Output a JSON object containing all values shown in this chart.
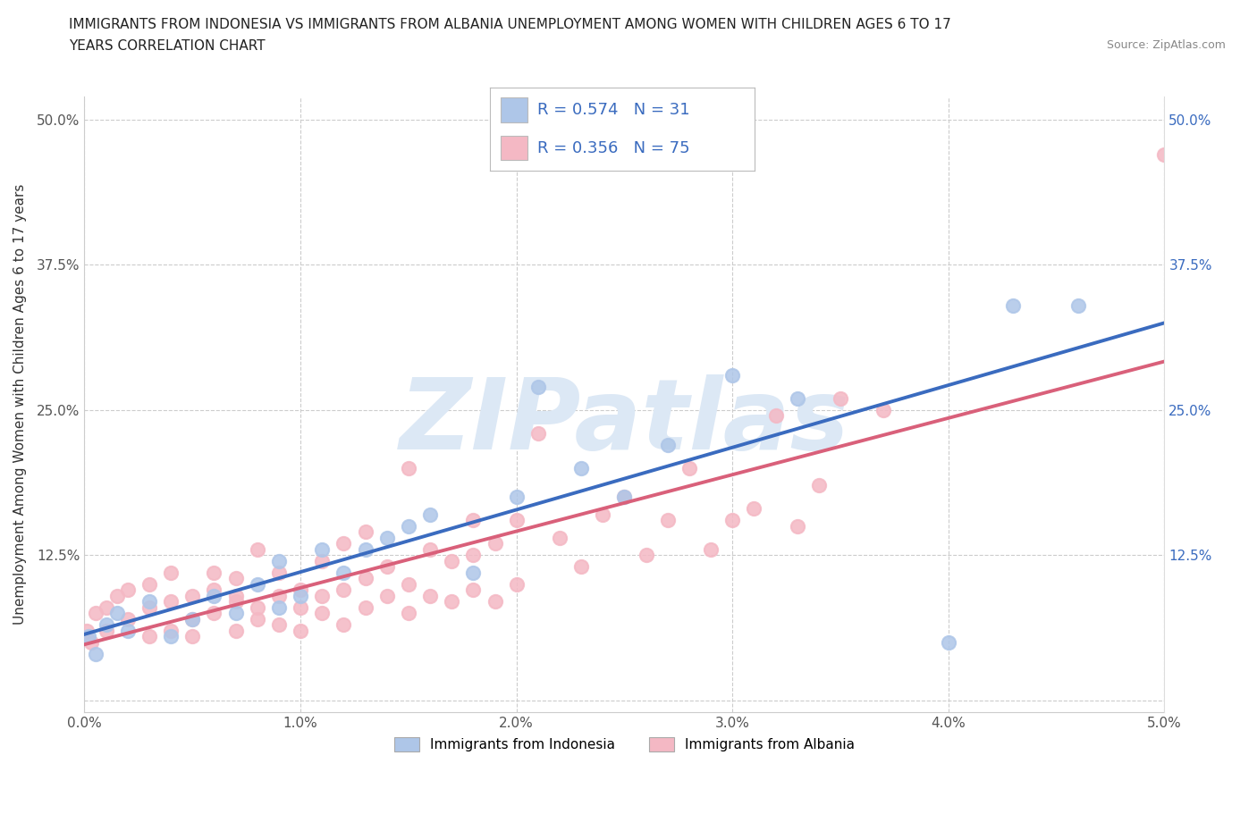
{
  "title_line1": "IMMIGRANTS FROM INDONESIA VS IMMIGRANTS FROM ALBANIA UNEMPLOYMENT AMONG WOMEN WITH CHILDREN AGES 6 TO 17",
  "title_line2": "YEARS CORRELATION CHART",
  "source_text": "Source: ZipAtlas.com",
  "ylabel": "Unemployment Among Women with Children Ages 6 to 17 years",
  "xlim": [
    0.0,
    0.05
  ],
  "ylim": [
    -0.01,
    0.52
  ],
  "xticks": [
    0.0,
    0.01,
    0.02,
    0.03,
    0.04,
    0.05
  ],
  "xticklabels": [
    "0.0%",
    "1.0%",
    "2.0%",
    "3.0%",
    "4.0%",
    "5.0%"
  ],
  "yticks": [
    0.0,
    0.125,
    0.25,
    0.375,
    0.5
  ],
  "yticklabels": [
    "",
    "12.5%",
    "25.0%",
    "37.5%",
    "50.0%"
  ],
  "indonesia_scatter_color": "#aec6e8",
  "albania_scatter_color": "#f4b8c4",
  "indonesia_line_color": "#3a6bbf",
  "albania_line_color": "#d9607a",
  "legend_text_color": "#3a6bbf",
  "right_axis_color": "#3a6bbf",
  "watermark_color": "#dce8f5",
  "watermark": "ZIPatlas",
  "R_indonesia": "0.574",
  "N_indonesia": "31",
  "R_albania": "0.356",
  "N_albania": "75",
  "legend_label_indonesia": "Immigrants from Indonesia",
  "legend_label_albania": "Immigrants from Albania",
  "indonesia_x": [
    0.0002,
    0.0005,
    0.001,
    0.0015,
    0.002,
    0.003,
    0.004,
    0.005,
    0.006,
    0.007,
    0.008,
    0.009,
    0.009,
    0.01,
    0.011,
    0.012,
    0.013,
    0.014,
    0.015,
    0.016,
    0.018,
    0.02,
    0.021,
    0.023,
    0.025,
    0.027,
    0.03,
    0.033,
    0.04,
    0.043,
    0.046
  ],
  "indonesia_y": [
    0.055,
    0.04,
    0.065,
    0.075,
    0.06,
    0.085,
    0.055,
    0.07,
    0.09,
    0.075,
    0.1,
    0.08,
    0.12,
    0.09,
    0.13,
    0.11,
    0.13,
    0.14,
    0.15,
    0.16,
    0.11,
    0.175,
    0.27,
    0.2,
    0.175,
    0.22,
    0.28,
    0.26,
    0.05,
    0.34,
    0.34
  ],
  "albania_x": [
    0.0001,
    0.0003,
    0.0005,
    0.001,
    0.001,
    0.0015,
    0.002,
    0.002,
    0.003,
    0.003,
    0.003,
    0.004,
    0.004,
    0.004,
    0.005,
    0.005,
    0.005,
    0.006,
    0.006,
    0.006,
    0.007,
    0.007,
    0.007,
    0.007,
    0.008,
    0.008,
    0.008,
    0.009,
    0.009,
    0.009,
    0.01,
    0.01,
    0.01,
    0.011,
    0.011,
    0.011,
    0.012,
    0.012,
    0.012,
    0.013,
    0.013,
    0.013,
    0.014,
    0.014,
    0.015,
    0.015,
    0.015,
    0.016,
    0.016,
    0.017,
    0.017,
    0.018,
    0.018,
    0.018,
    0.019,
    0.019,
    0.02,
    0.02,
    0.021,
    0.022,
    0.023,
    0.024,
    0.025,
    0.026,
    0.027,
    0.028,
    0.029,
    0.03,
    0.031,
    0.032,
    0.033,
    0.034,
    0.035,
    0.037,
    0.05
  ],
  "albania_y": [
    0.06,
    0.05,
    0.075,
    0.08,
    0.06,
    0.09,
    0.07,
    0.095,
    0.055,
    0.08,
    0.1,
    0.06,
    0.085,
    0.11,
    0.055,
    0.09,
    0.07,
    0.095,
    0.075,
    0.11,
    0.06,
    0.085,
    0.09,
    0.105,
    0.07,
    0.08,
    0.13,
    0.065,
    0.09,
    0.11,
    0.06,
    0.08,
    0.095,
    0.075,
    0.09,
    0.12,
    0.065,
    0.095,
    0.135,
    0.08,
    0.105,
    0.145,
    0.09,
    0.115,
    0.075,
    0.1,
    0.2,
    0.09,
    0.13,
    0.085,
    0.12,
    0.095,
    0.125,
    0.155,
    0.085,
    0.135,
    0.1,
    0.155,
    0.23,
    0.14,
    0.115,
    0.16,
    0.175,
    0.125,
    0.155,
    0.2,
    0.13,
    0.155,
    0.165,
    0.245,
    0.15,
    0.185,
    0.26,
    0.25,
    0.47
  ]
}
